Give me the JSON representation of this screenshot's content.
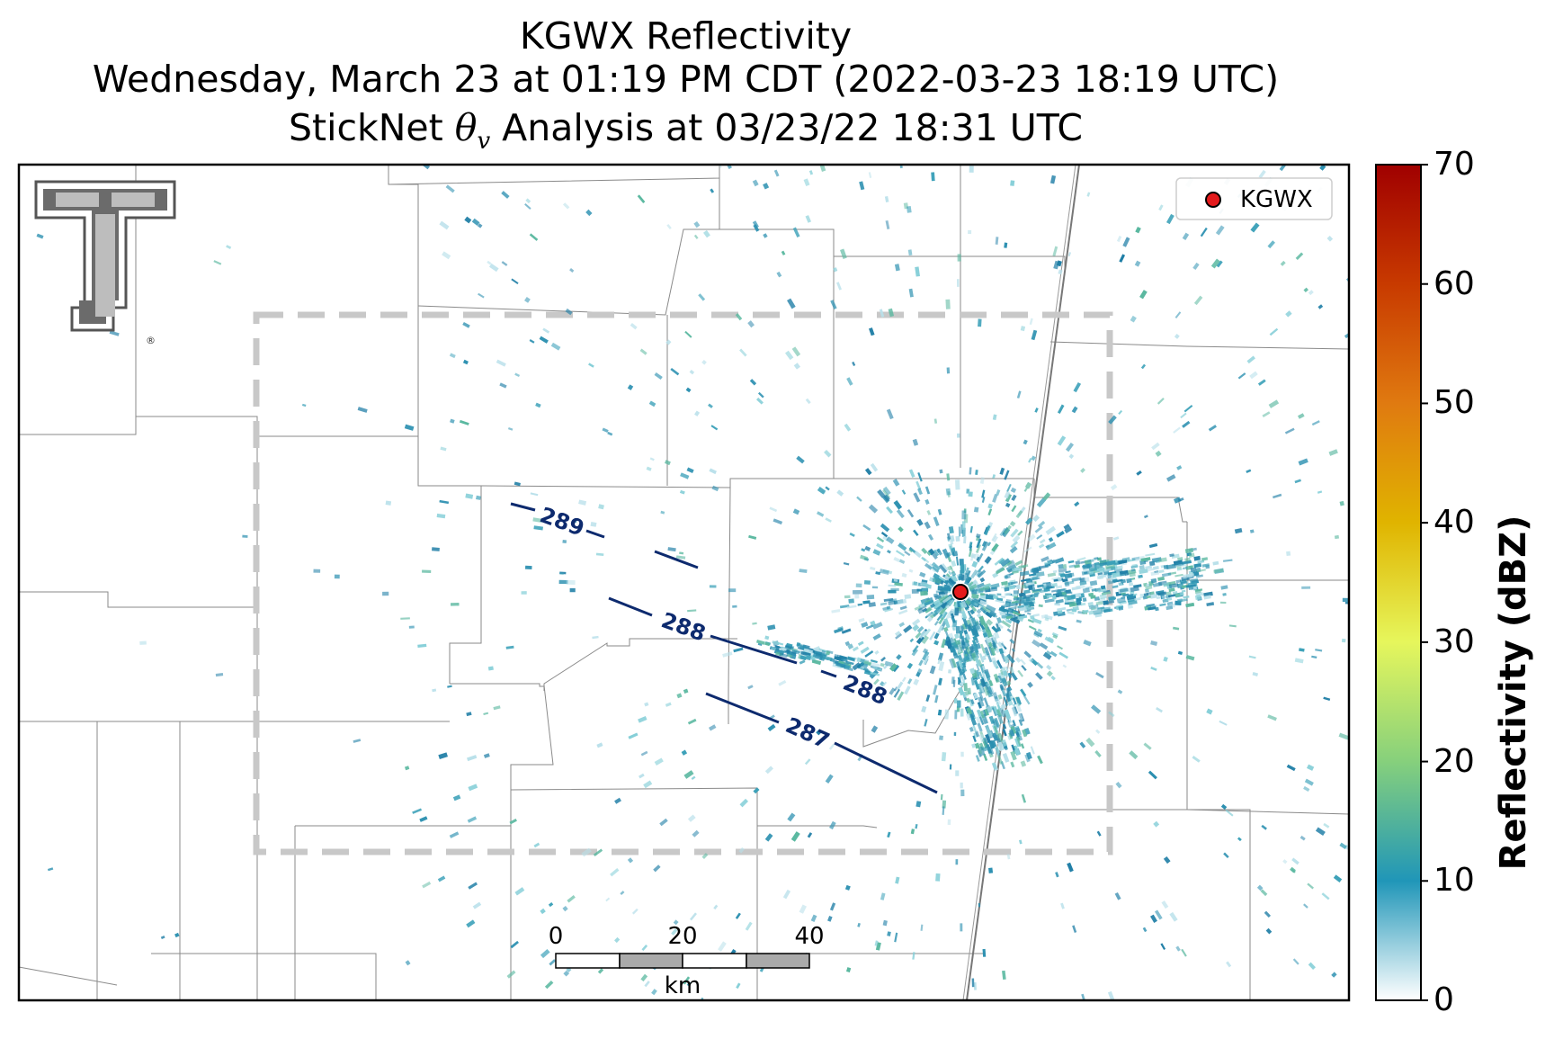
{
  "title": {
    "line1": "KGWX Reflectivity",
    "line2": "Wednesday, March 23 at 01:19 PM CDT (2022-03-23 18:19 UTC)",
    "line3_prefix": "StickNet ",
    "line3_symbol": "θ",
    "line3_subscript": "v",
    "line3_suffix": " Analysis at 03/23/22 18:31 UTC"
  },
  "legend": {
    "label": "KGWX",
    "marker_color": "#e41a1c"
  },
  "radar_site": {
    "name": "KGWX"
  },
  "logo": {
    "text": "TT",
    "mark": "®"
  },
  "contours": [
    {
      "label": "289"
    },
    {
      "label": "288"
    },
    {
      "label": "288"
    },
    {
      "label": "287"
    }
  ],
  "contour_color": "#0d2a6e",
  "scale_bar": {
    "ticks": [
      "0",
      "20",
      "40"
    ],
    "unit": "km"
  },
  "colorbar": {
    "label": "Reflectivity (dBZ)",
    "ticks": [
      "0",
      "10",
      "20",
      "30",
      "40",
      "50",
      "60",
      "70"
    ],
    "min": 0,
    "max": 70,
    "stops": [
      {
        "value": 0,
        "color": "#ffffff"
      },
      {
        "value": 10,
        "color": "#2096b8"
      },
      {
        "value": 20,
        "color": "#86d07c"
      },
      {
        "value": 30,
        "color": "#e6f65c"
      },
      {
        "value": 40,
        "color": "#e0b400"
      },
      {
        "value": 50,
        "color": "#e07a10"
      },
      {
        "value": 60,
        "color": "#c83a00"
      },
      {
        "value": 70,
        "color": "#a00000"
      }
    ]
  },
  "analysis_domain_color": "#c8c8c8",
  "map_colors": {
    "boundaries": "#8a8a8a",
    "highway": "#777777",
    "echo_primary": "#2a8fb0",
    "echo_secondary": "#6ec08a"
  }
}
